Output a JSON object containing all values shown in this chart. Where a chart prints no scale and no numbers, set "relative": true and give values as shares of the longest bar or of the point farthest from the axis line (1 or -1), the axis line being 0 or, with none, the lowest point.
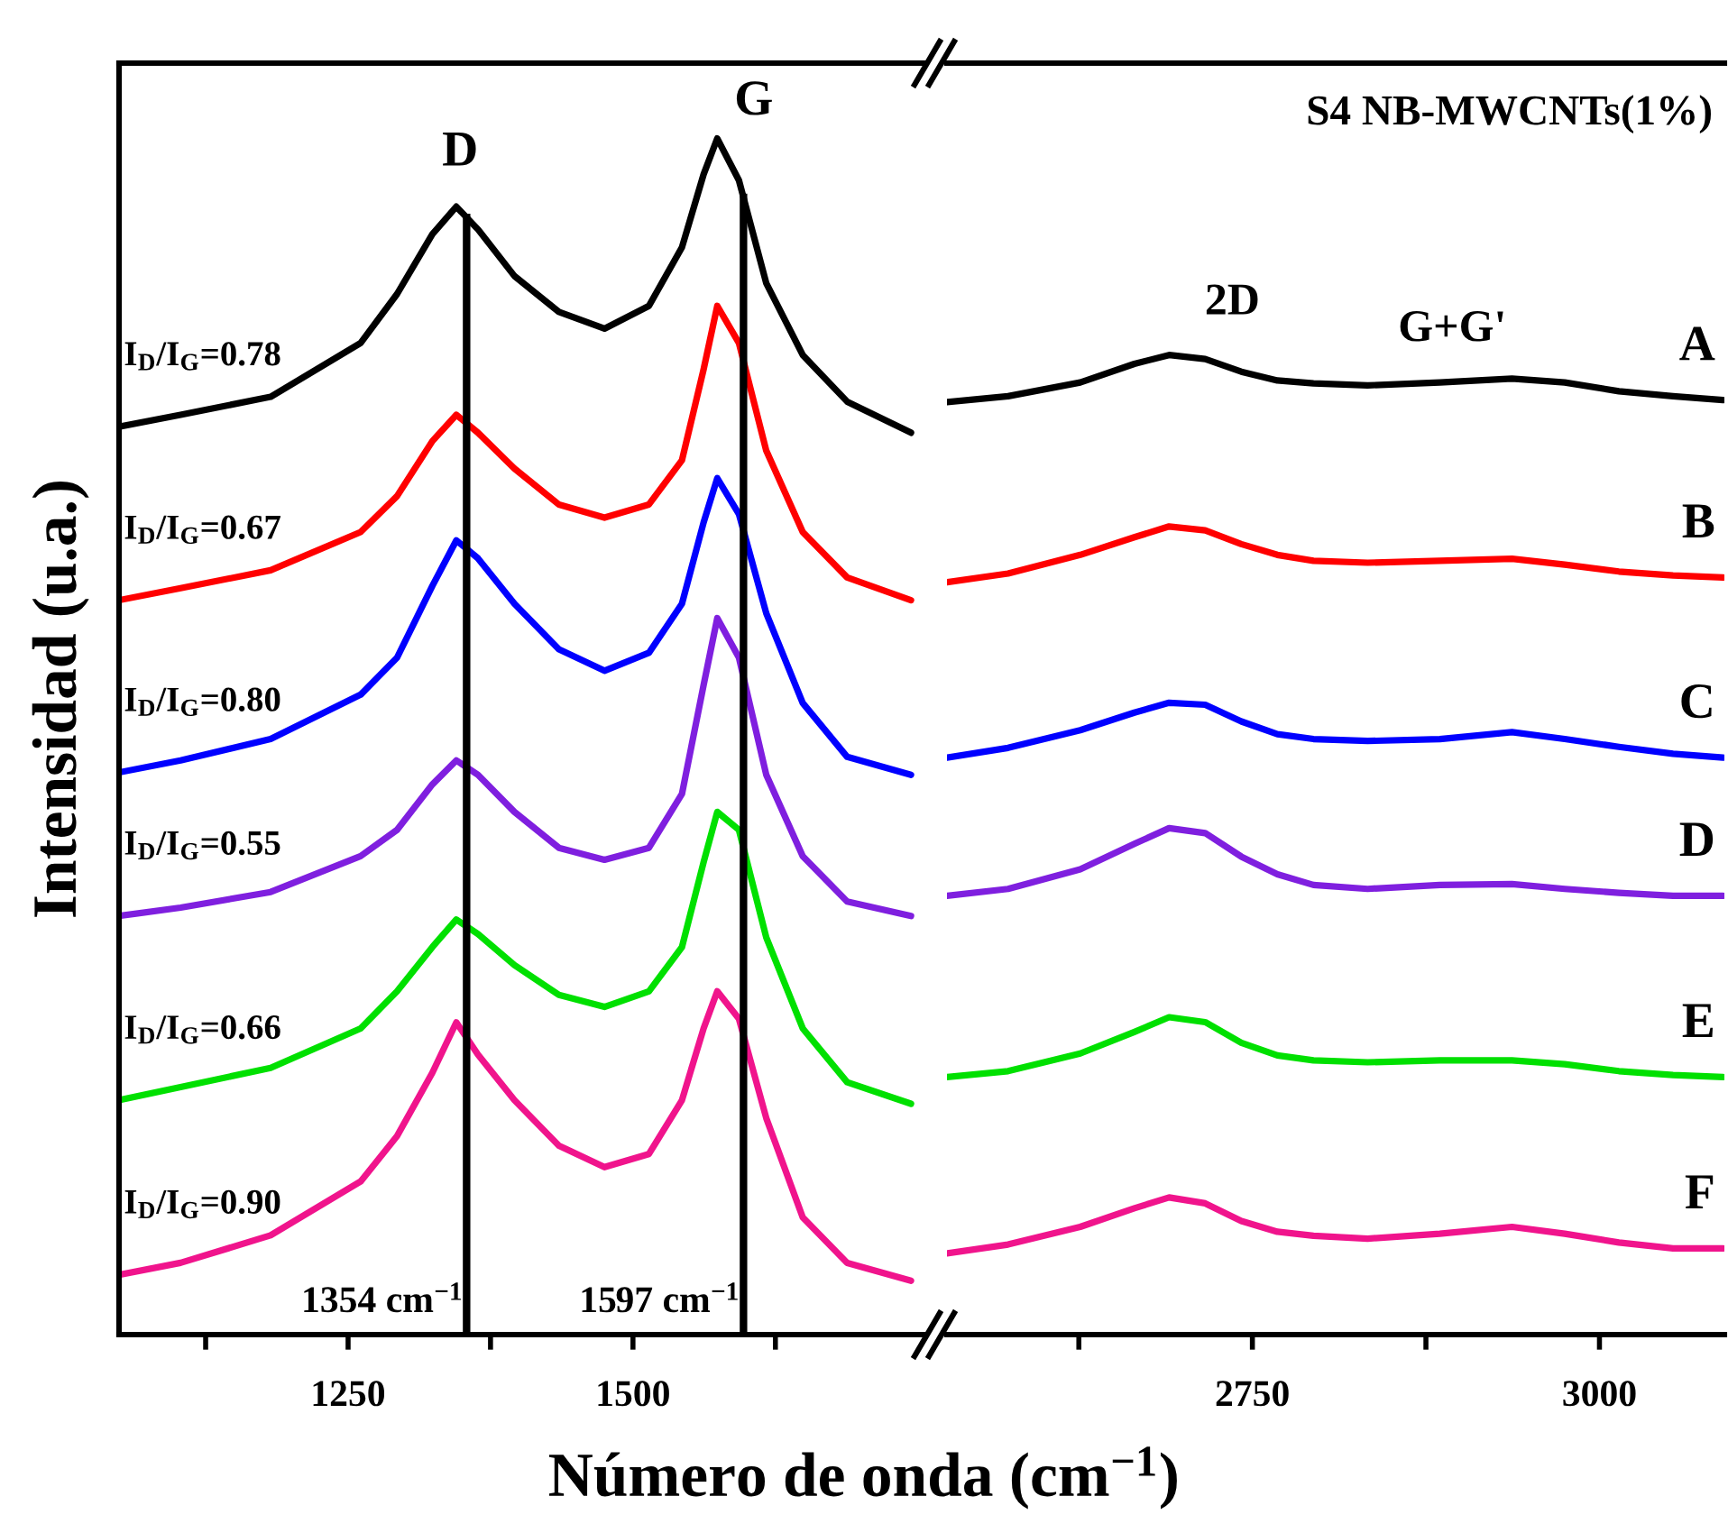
{
  "chart_data": [
    {
      "type": "line",
      "relative": true,
      "ylabel": "Intensidad (u.a.)",
      "xlabel": "Número de onda (cm$^{−1}$)",
      "xlim": [
        1049,
        1755
      ],
      "xticks": [
        {
          "value": 1125,
          "label": null
        },
        1250,
        {
          "value": 1375,
          "label": null
        },
        1500,
        {
          "value": 1625,
          "label": null
        }
      ],
      "x": [
        1049,
        1103,
        1182,
        1261,
        1293,
        1324,
        1345,
        1364,
        1396,
        1435,
        1475,
        1514,
        1543,
        1562,
        1574,
        1593,
        1617,
        1649,
        1688,
        1744
      ],
      "series": [
        {
          "name": "I$_{D}$/I$_{G}$=0.78",
          "color": "#000000",
          "values": [
            0.759,
            0.769,
            0.784,
            0.829,
            0.87,
            0.92,
            0.943,
            0.924,
            0.885,
            0.855,
            0.841,
            0.86,
            0.909,
            0.97,
            1.0,
            0.965,
            0.879,
            0.819,
            0.78,
            0.754
          ]
        },
        {
          "name": "I$_{D}$/I$_{G}$=0.67",
          "color": "#ff0000",
          "values": [
            0.614,
            0.624,
            0.639,
            0.671,
            0.701,
            0.747,
            0.769,
            0.754,
            0.724,
            0.694,
            0.683,
            0.694,
            0.731,
            0.807,
            0.86,
            0.829,
            0.739,
            0.671,
            0.633,
            0.614
          ]
        },
        {
          "name": "I$_{D}$/I$_{G}$=0.80",
          "color": "#0000ff",
          "values": [
            0.47,
            0.48,
            0.498,
            0.535,
            0.566,
            0.626,
            0.664,
            0.649,
            0.611,
            0.573,
            0.555,
            0.57,
            0.611,
            0.679,
            0.716,
            0.686,
            0.603,
            0.528,
            0.483,
            0.468
          ]
        },
        {
          "name": "I$_{D}$/I$_{G}$=0.55",
          "color": "#7f1fdf",
          "values": [
            0.35,
            0.357,
            0.37,
            0.4,
            0.422,
            0.46,
            0.48,
            0.468,
            0.437,
            0.407,
            0.397,
            0.407,
            0.452,
            0.543,
            0.599,
            0.566,
            0.468,
            0.4,
            0.362,
            0.35
          ]
        },
        {
          "name": "I$_{D}$/I$_{G}$=0.66",
          "color": "#00e000",
          "values": [
            0.196,
            0.207,
            0.223,
            0.256,
            0.287,
            0.324,
            0.347,
            0.335,
            0.309,
            0.284,
            0.274,
            0.287,
            0.324,
            0.395,
            0.437,
            0.422,
            0.332,
            0.256,
            0.211,
            0.193
          ]
        },
        {
          "name": "I$_{D}$/I$_{G}$=0.90",
          "color": "#f0148c",
          "values": [
            0.05,
            0.06,
            0.083,
            0.128,
            0.166,
            0.219,
            0.261,
            0.234,
            0.196,
            0.158,
            0.14,
            0.151,
            0.196,
            0.256,
            0.287,
            0.264,
            0.181,
            0.098,
            0.06,
            0.045
          ]
        }
      ],
      "ref_lines": [
        {
          "axis": "x",
          "value": 1354,
          "label": "1354 cm$^{−1}$",
          "color": "#000000"
        },
        {
          "axis": "x",
          "value": 1597,
          "label": "1597 cm$^{−1}$",
          "color": "#000000"
        }
      ],
      "annotations": [
        "D",
        "G"
      ]
    },
    {
      "type": "line",
      "relative": true,
      "xlim": [
        2530,
        3090
      ],
      "xticks": [
        {
          "value": 2625,
          "label": null
        },
        2750,
        {
          "value": 2875,
          "label": null
        },
        3000
      ],
      "x": [
        2530,
        2574,
        2626,
        2665,
        2690,
        2716,
        2742,
        2768,
        2794,
        2833,
        2885,
        2937,
        2975,
        3014,
        3053,
        3089
      ],
      "series": [
        {
          "name": "A",
          "color": "#000000",
          "values": [
            0.952,
            0.958,
            0.972,
            0.991,
            1,
            0.996,
            0.983,
            0.974,
            0.971,
            0.969,
            0.972,
            0.976,
            0.972,
            0.963,
            0.958,
            0.954
          ]
        },
        {
          "name": "B",
          "color": "#ff0000",
          "values": [
            0.768,
            0.777,
            0.796,
            0.814,
            0.825,
            0.821,
            0.807,
            0.796,
            0.79,
            0.788,
            0.79,
            0.792,
            0.786,
            0.779,
            0.775,
            0.773
          ]
        },
        {
          "name": "C",
          "color": "#0000ff",
          "values": [
            0.589,
            0.599,
            0.617,
            0.635,
            0.645,
            0.643,
            0.626,
            0.613,
            0.608,
            0.606,
            0.608,
            0.615,
            0.608,
            0.6,
            0.593,
            0.589
          ]
        },
        {
          "name": "D",
          "color": "#7f1fdf",
          "values": [
            0.448,
            0.455,
            0.475,
            0.501,
            0.517,
            0.512,
            0.488,
            0.47,
            0.459,
            0.455,
            0.459,
            0.46,
            0.455,
            0.451,
            0.448,
            0.448
          ]
        },
        {
          "name": "E",
          "color": "#00e000",
          "values": [
            0.263,
            0.269,
            0.287,
            0.309,
            0.324,
            0.319,
            0.298,
            0.285,
            0.28,
            0.278,
            0.28,
            0.28,
            0.276,
            0.269,
            0.265,
            0.263
          ]
        },
        {
          "name": "F",
          "color": "#f0148c",
          "values": [
            0.083,
            0.092,
            0.11,
            0.129,
            0.14,
            0.134,
            0.116,
            0.105,
            0.101,
            0.098,
            0.103,
            0.11,
            0.103,
            0.094,
            0.088,
            0.088
          ]
        }
      ],
      "annotations": [
        "S4 NB-MWCNTs(1%)",
        "2D",
        "G+G'"
      ]
    }
  ]
}
